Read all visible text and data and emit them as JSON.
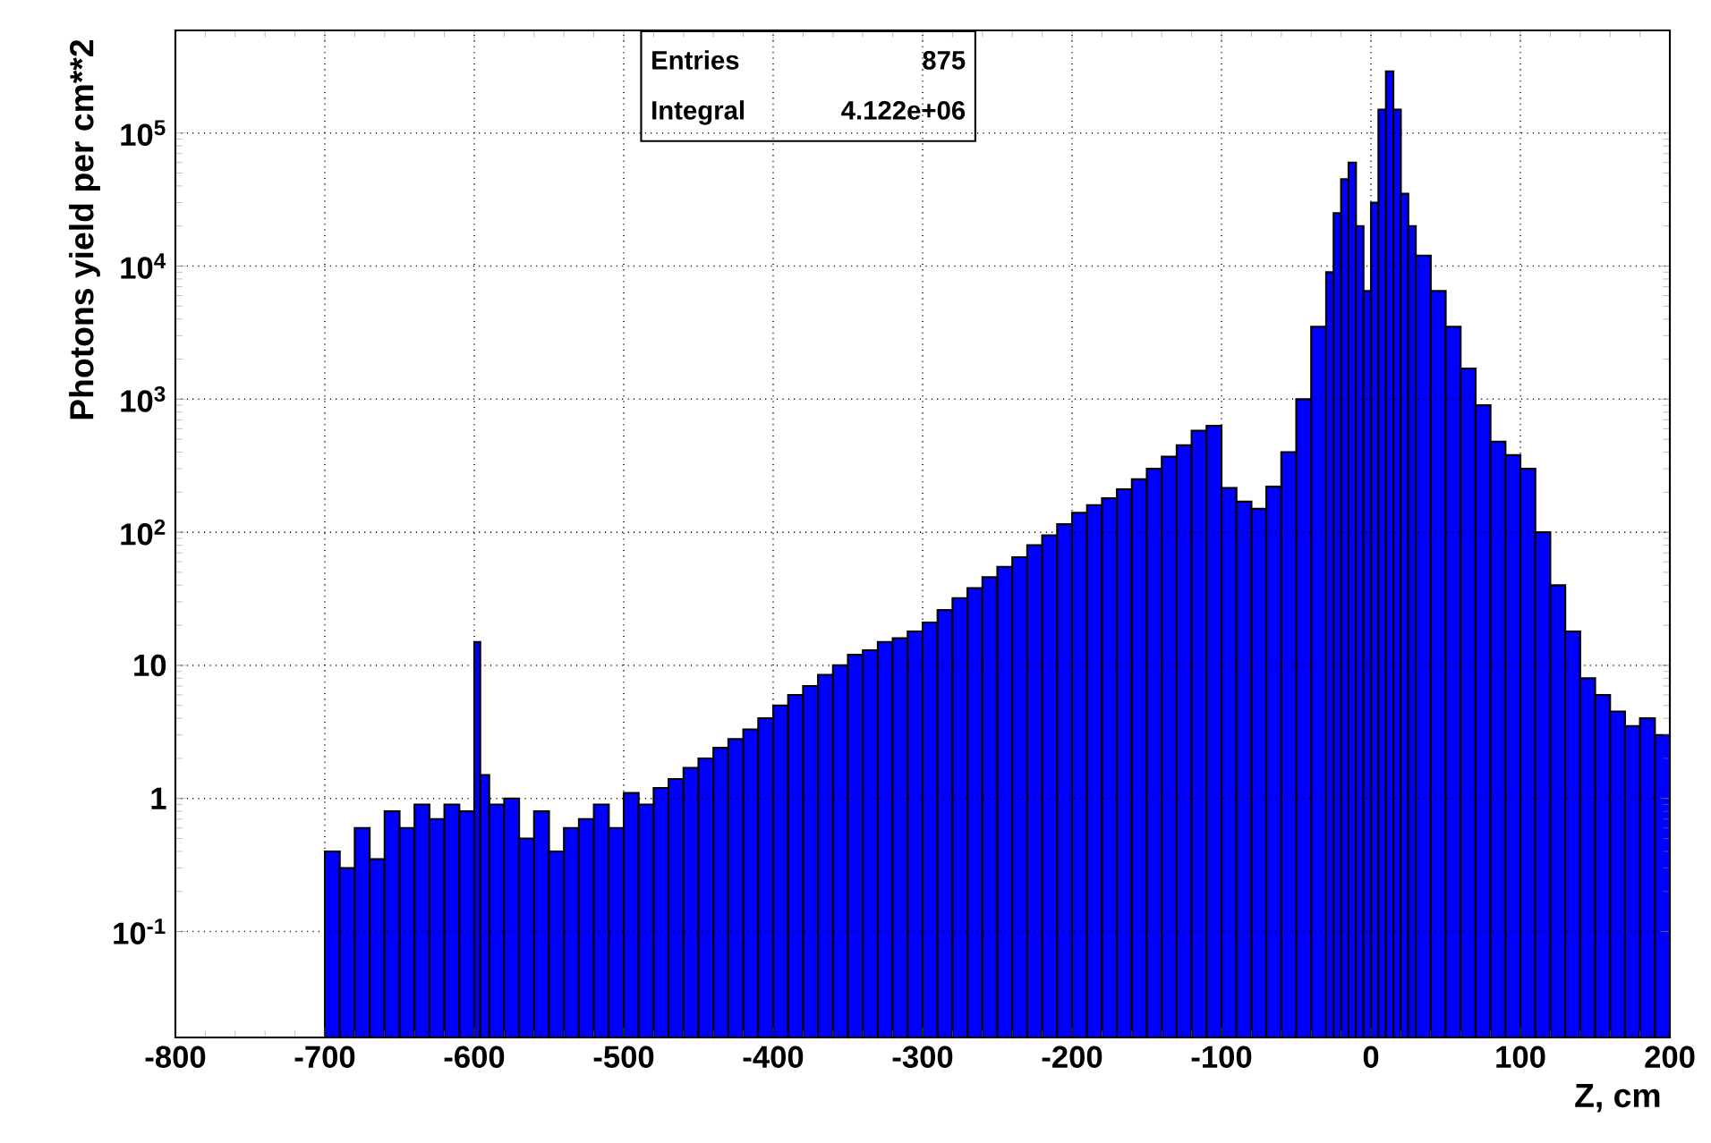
{
  "chart_data": {
    "type": "histogram",
    "xlabel": "Z, cm",
    "ylabel": "Photons yield per cm**2",
    "annotations": [
      "Entries",
      "875",
      "Integral",
      "4.122e+06"
    ],
    "bins": [
      -700,
      -690,
      -680,
      -670,
      -660,
      -650,
      -640,
      -630,
      -620,
      -610,
      -600,
      -596,
      -590,
      -580,
      -570,
      -560,
      -550,
      -540,
      -530,
      -520,
      -510,
      -500,
      -490,
      -480,
      -470,
      -460,
      -450,
      -440,
      -430,
      -420,
      -410,
      -400,
      -390,
      -380,
      -370,
      -360,
      -350,
      -340,
      -330,
      -320,
      -310,
      -300,
      -290,
      -280,
      -270,
      -260,
      -250,
      -240,
      -230,
      -220,
      -210,
      -200,
      -190,
      -180,
      -170,
      -160,
      -150,
      -140,
      -130,
      -120,
      -110,
      -100,
      -90,
      -80,
      -70,
      -60,
      -50,
      -40,
      -30,
      -25,
      -20,
      -15,
      -10,
      -5,
      0,
      5,
      10,
      15,
      20,
      25,
      30,
      40,
      50,
      60,
      70,
      80,
      90,
      100,
      110,
      120,
      130,
      140,
      150,
      160,
      170,
      180,
      190,
      200
    ],
    "values": [
      0.4,
      0.3,
      0.6,
      0.35,
      0.8,
      0.6,
      0.9,
      0.7,
      0.9,
      0.8,
      15,
      1.5,
      0.9,
      1,
      0.5,
      0.8,
      0.4,
      0.6,
      0.7,
      0.9,
      0.6,
      1.1,
      0.9,
      1.2,
      1.4,
      1.7,
      2,
      2.4,
      2.8,
      3.3,
      4,
      5,
      6,
      7,
      8.5,
      10,
      12,
      13,
      15,
      16,
      18,
      21,
      26,
      32,
      38,
      46,
      55,
      65,
      80,
      95,
      115,
      140,
      160,
      180,
      210,
      250,
      300,
      370,
      450,
      580,
      630,
      215,
      170,
      150,
      220,
      400,
      1000,
      3500,
      9000,
      25000,
      45000,
      60000,
      20000,
      6500,
      30000,
      150000,
      290000,
      150000,
      35000,
      20000,
      12000,
      6500,
      3500,
      1700,
      900,
      480,
      380,
      300,
      100,
      40,
      18,
      8,
      6,
      4.5,
      3.5,
      4,
      3
    ],
    "color": "#0000ff",
    "log": true,
    "xlim": [
      -800,
      200
    ],
    "ylim": [
      0.016,
      590000
    ],
    "xticks": [
      -800,
      -700,
      -600,
      -500,
      -400,
      -300,
      -200,
      -100,
      0,
      100,
      200
    ],
    "yticks": [
      {
        "value": 0.1,
        "label": "10$^{-1}$"
      },
      1,
      10,
      {
        "value": 100,
        "label": "10$^{2}$"
      },
      {
        "value": 1000,
        "label": "10$^{3}$"
      },
      {
        "value": 10000,
        "label": "10$^{4}$"
      },
      {
        "value": 100000,
        "label": "10$^{5}$"
      }
    ],
    "grid": true,
    "line_style": "dotted"
  }
}
